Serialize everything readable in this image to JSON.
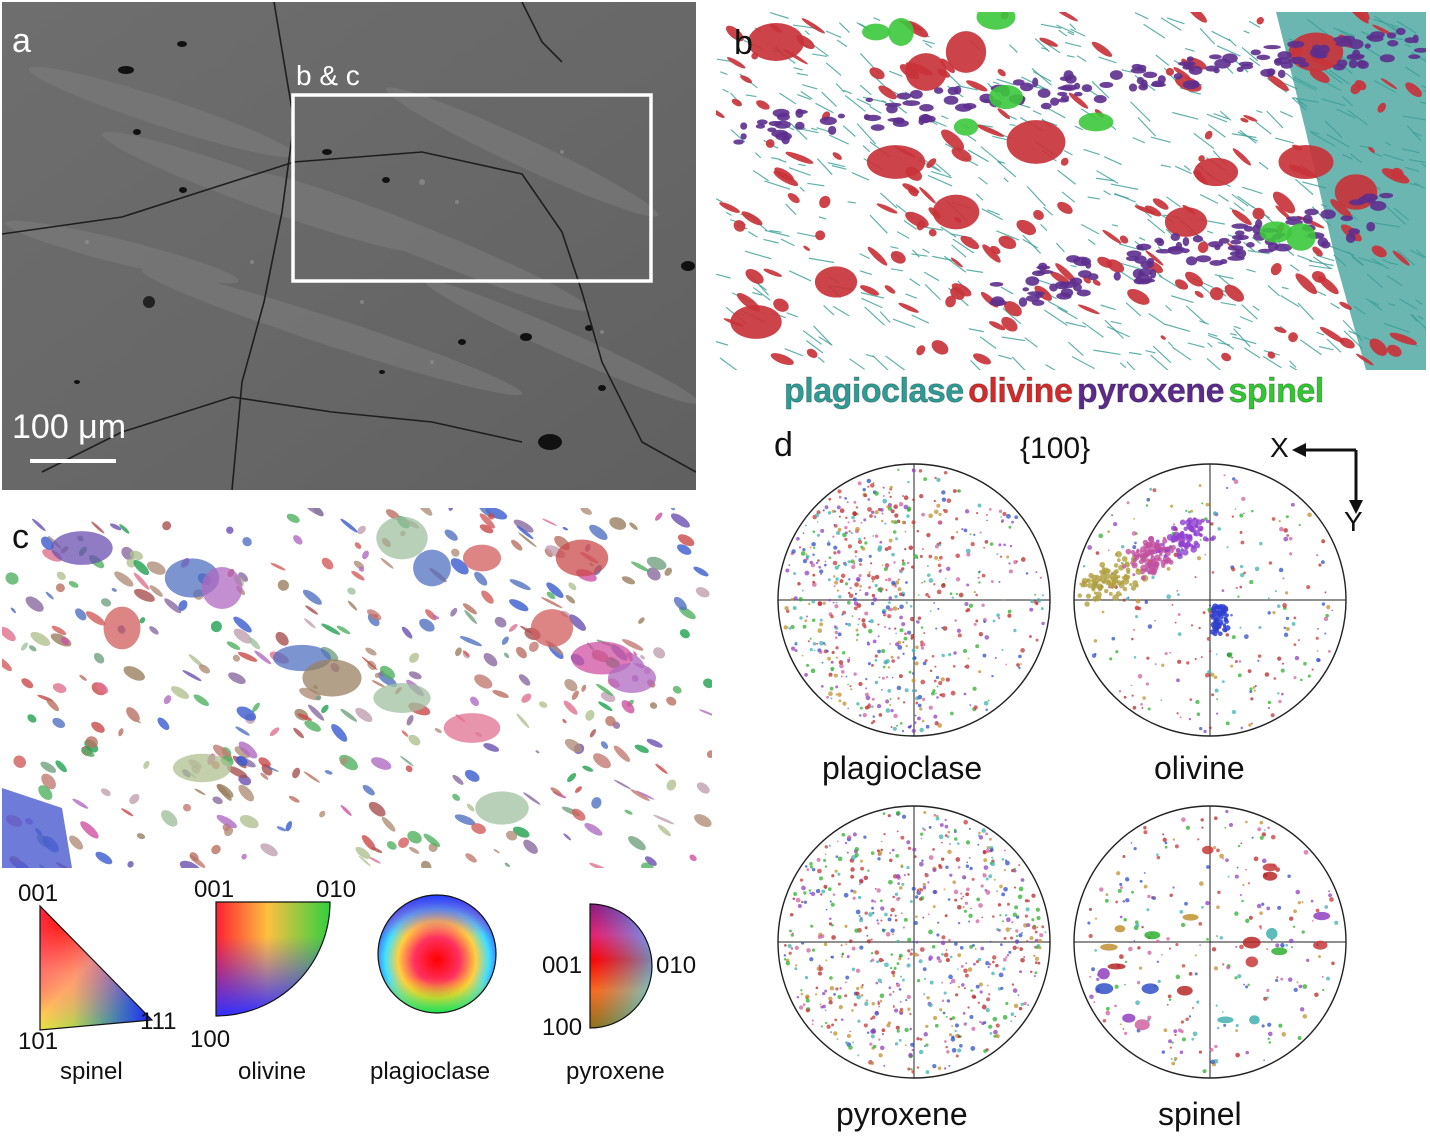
{
  "panel_a": {
    "label": "a",
    "region_label": "b & c",
    "scale_label": "100 μm"
  },
  "panel_b": {
    "label": "b",
    "legend": [
      {
        "name": "plagioclase",
        "color": "#2e9c95"
      },
      {
        "name": "olivine",
        "color": "#d42a2a"
      },
      {
        "name": "pyroxene",
        "color": "#5b2a8c"
      },
      {
        "name": "spinel",
        "color": "#2fc92f"
      }
    ]
  },
  "panel_c": {
    "label": "c"
  },
  "color_keys": {
    "spinel": {
      "name": "spinel",
      "v1": "001",
      "v2": "101",
      "v3": "111"
    },
    "olivine": {
      "name": "olivine",
      "v1": "001",
      "v2": "010",
      "v3": "100"
    },
    "plagioclase": {
      "name": "plagioclase"
    },
    "pyroxene": {
      "name": "pyroxene",
      "v1": "001",
      "v2": "010",
      "v3": "100"
    }
  },
  "panel_d": {
    "label": "d",
    "pole_figure": "{100}",
    "axis_x": "X",
    "axis_y": "Y",
    "figures": [
      "plagioclase",
      "olivine",
      "pyroxene",
      "spinel"
    ]
  }
}
